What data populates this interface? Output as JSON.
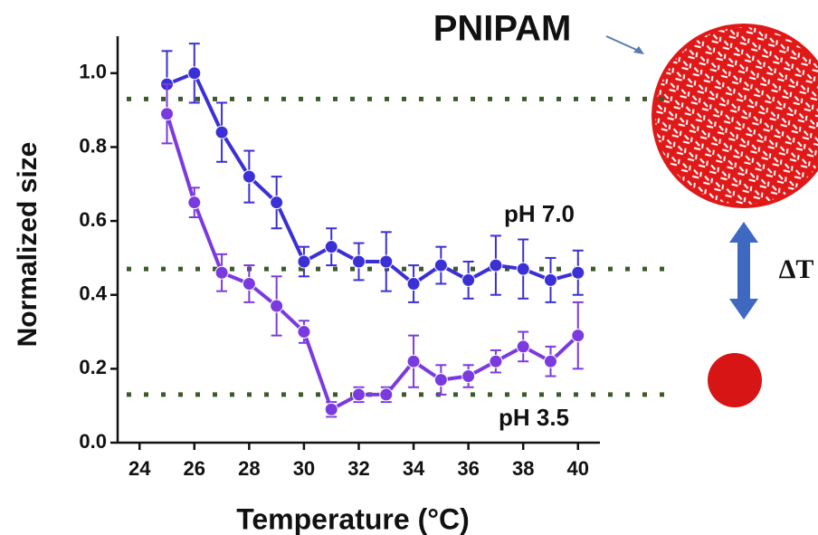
{
  "chart_data": {
    "type": "line",
    "xlabel": "Temperature (°C)",
    "ylabel": "Normalized size",
    "x": [
      25,
      26,
      27,
      28,
      29,
      30,
      31,
      32,
      33,
      34,
      35,
      36,
      37,
      38,
      39,
      40
    ],
    "series": [
      {
        "name": "pH 7.0",
        "color": "#3b2fd6",
        "values": [
          0.97,
          1.0,
          0.84,
          0.72,
          0.65,
          0.49,
          0.53,
          0.49,
          0.49,
          0.43,
          0.48,
          0.44,
          0.48,
          0.47,
          0.44,
          0.46
        ],
        "errors": [
          0.09,
          0.08,
          0.08,
          0.07,
          0.07,
          0.04,
          0.05,
          0.05,
          0.08,
          0.05,
          0.05,
          0.05,
          0.08,
          0.08,
          0.06,
          0.06
        ]
      },
      {
        "name": "pH 3.5",
        "color": "#7b3ae0",
        "values": [
          0.89,
          0.65,
          0.46,
          0.43,
          0.37,
          0.3,
          0.09,
          0.13,
          0.13,
          0.22,
          0.17,
          0.18,
          0.22,
          0.26,
          0.22,
          0.29
        ],
        "errors": [
          0.08,
          0.04,
          0.05,
          0.05,
          0.08,
          0.03,
          0.02,
          0.02,
          0.02,
          0.07,
          0.04,
          0.03,
          0.03,
          0.04,
          0.04,
          0.09
        ]
      }
    ],
    "reference_lines": [
      0.93,
      0.47,
      0.13
    ],
    "reference_color": "#3d5a2a",
    "xlim": [
      23.2,
      40.8
    ],
    "ylim": [
      0,
      1.1
    ],
    "xticks": [
      24,
      26,
      28,
      30,
      32,
      34,
      36,
      38,
      40
    ],
    "yticks": [
      {
        "value": 0,
        "label": "0.0"
      },
      0.2,
      0.4,
      0.6,
      0.8,
      {
        "value": 1,
        "label": "1.0"
      }
    ],
    "annotations": {
      "material": "PNIPAM",
      "delta": "ΔT"
    }
  }
}
